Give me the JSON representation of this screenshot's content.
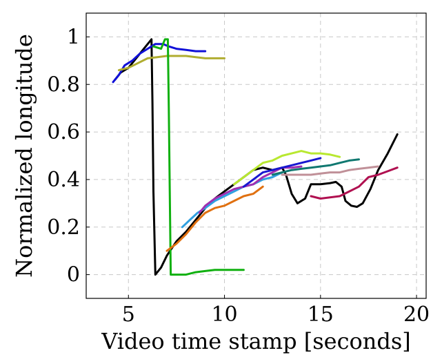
{
  "chart_data": {
    "type": "line",
    "title": "",
    "xlabel": "Video time stamp [seconds]",
    "ylabel": "Normalized longitude",
    "xlim": [
      2.8,
      20.5
    ],
    "ylim": [
      -0.1,
      1.1
    ],
    "xticks": [
      5,
      10,
      15,
      20
    ],
    "yticks": [
      0,
      0.2,
      0.4,
      0.6,
      0.8,
      1
    ],
    "xtick_labels": [
      "5",
      "10",
      "15",
      "20"
    ],
    "ytick_labels": [
      "0",
      "0.2",
      "0.4",
      "0.6",
      "0.8",
      "1"
    ],
    "grid": true,
    "legend": "none",
    "series": [
      {
        "color": "#000000",
        "points": [
          [
            4.3,
            0.82
          ],
          [
            4.6,
            0.85
          ],
          [
            5.0,
            0.87
          ],
          [
            5.4,
            0.91
          ],
          [
            5.8,
            0.95
          ],
          [
            6.2,
            0.99
          ],
          [
            6.25,
            0.72
          ],
          [
            6.3,
            0.35
          ],
          [
            6.4,
            0.0
          ],
          [
            6.7,
            0.03
          ],
          [
            7.0,
            0.08
          ],
          [
            7.5,
            0.14
          ],
          [
            8.0,
            0.18
          ],
          [
            8.5,
            0.23
          ],
          [
            9.0,
            0.28
          ],
          [
            9.5,
            0.32
          ],
          [
            10.0,
            0.35
          ],
          [
            10.5,
            0.38
          ],
          [
            11.0,
            0.41
          ],
          [
            11.5,
            0.44
          ],
          [
            12.0,
            0.45
          ],
          [
            12.5,
            0.44
          ],
          [
            13.0,
            0.45
          ],
          [
            13.2,
            0.42
          ],
          [
            13.5,
            0.34
          ],
          [
            13.8,
            0.3
          ],
          [
            14.2,
            0.32
          ],
          [
            14.5,
            0.38
          ],
          [
            15.0,
            0.38
          ],
          [
            15.5,
            0.385
          ],
          [
            15.8,
            0.39
          ],
          [
            16.1,
            0.37
          ],
          [
            16.3,
            0.31
          ],
          [
            16.6,
            0.29
          ],
          [
            16.9,
            0.285
          ],
          [
            17.2,
            0.3
          ],
          [
            17.6,
            0.36
          ],
          [
            18.0,
            0.44
          ],
          [
            18.5,
            0.51
          ],
          [
            19.0,
            0.59
          ]
        ]
      },
      {
        "color": "#1010d8",
        "points": [
          [
            4.2,
            0.81
          ],
          [
            4.5,
            0.84
          ],
          [
            4.8,
            0.88
          ],
          [
            5.2,
            0.9
          ],
          [
            5.6,
            0.93
          ],
          [
            6.0,
            0.95
          ],
          [
            6.4,
            0.97
          ],
          [
            6.8,
            0.97
          ],
          [
            7.1,
            0.96
          ],
          [
            7.5,
            0.95
          ],
          [
            8.0,
            0.945
          ],
          [
            8.5,
            0.94
          ],
          [
            9.0,
            0.94
          ]
        ]
      },
      {
        "color": "#b0ad30",
        "points": [
          [
            4.5,
            0.86
          ],
          [
            5.0,
            0.87
          ],
          [
            5.5,
            0.89
          ],
          [
            6.0,
            0.91
          ],
          [
            6.5,
            0.915
          ],
          [
            7.0,
            0.92
          ],
          [
            7.5,
            0.92
          ],
          [
            8.0,
            0.92
          ],
          [
            8.5,
            0.915
          ],
          [
            9.0,
            0.91
          ],
          [
            9.5,
            0.91
          ],
          [
            10.0,
            0.91
          ]
        ]
      },
      {
        "color": "#10b010",
        "points": [
          [
            6.3,
            0.96
          ],
          [
            6.7,
            0.95
          ],
          [
            6.9,
            0.99
          ],
          [
            7.05,
            0.99
          ],
          [
            7.1,
            0.7
          ],
          [
            7.15,
            0.35
          ],
          [
            7.2,
            0.0
          ],
          [
            7.5,
            0.0
          ],
          [
            8.0,
            0.0
          ],
          [
            8.5,
            0.01
          ],
          [
            9.0,
            0.015
          ],
          [
            9.5,
            0.02
          ],
          [
            10.0,
            0.02
          ],
          [
            10.5,
            0.02
          ],
          [
            11.0,
            0.02
          ]
        ]
      },
      {
        "color": "#e07010",
        "points": [
          [
            7.0,
            0.1
          ],
          [
            7.5,
            0.13
          ],
          [
            8.0,
            0.17
          ],
          [
            8.5,
            0.22
          ],
          [
            9.0,
            0.26
          ],
          [
            9.5,
            0.28
          ],
          [
            10.0,
            0.29
          ],
          [
            10.5,
            0.31
          ],
          [
            11.0,
            0.33
          ],
          [
            11.5,
            0.34
          ],
          [
            12.0,
            0.37
          ]
        ]
      },
      {
        "color": "#30a0e0",
        "points": [
          [
            7.8,
            0.2
          ],
          [
            8.2,
            0.23
          ],
          [
            8.6,
            0.26
          ],
          [
            9.0,
            0.28
          ],
          [
            9.5,
            0.31
          ],
          [
            10.0,
            0.33
          ],
          [
            10.5,
            0.35
          ],
          [
            11.0,
            0.37
          ],
          [
            11.5,
            0.38
          ],
          [
            12.0,
            0.4
          ],
          [
            12.5,
            0.41
          ],
          [
            13.0,
            0.43
          ]
        ]
      },
      {
        "color": "#a030b0",
        "points": [
          [
            8.7,
            0.26
          ],
          [
            9.0,
            0.29
          ],
          [
            9.5,
            0.32
          ],
          [
            10.0,
            0.34
          ],
          [
            10.5,
            0.36
          ],
          [
            11.0,
            0.37
          ],
          [
            11.5,
            0.38
          ],
          [
            12.0,
            0.41
          ],
          [
            12.5,
            0.43
          ],
          [
            13.0,
            0.45
          ],
          [
            13.5,
            0.45
          ],
          [
            14.0,
            0.455
          ]
        ]
      },
      {
        "color": "#b8e830",
        "points": [
          [
            10.5,
            0.38
          ],
          [
            11.0,
            0.41
          ],
          [
            11.5,
            0.44
          ],
          [
            12.0,
            0.47
          ],
          [
            12.5,
            0.48
          ],
          [
            13.0,
            0.5
          ],
          [
            13.5,
            0.51
          ],
          [
            14.0,
            0.52
          ],
          [
            14.5,
            0.51
          ],
          [
            15.0,
            0.51
          ],
          [
            15.5,
            0.505
          ],
          [
            16.0,
            0.495
          ]
        ]
      },
      {
        "color": "#1818d0",
        "points": [
          [
            11.0,
            0.37
          ],
          [
            11.5,
            0.4
          ],
          [
            12.0,
            0.43
          ],
          [
            12.5,
            0.44
          ],
          [
            13.0,
            0.45
          ],
          [
            13.5,
            0.46
          ],
          [
            14.0,
            0.47
          ],
          [
            14.5,
            0.48
          ],
          [
            15.0,
            0.49
          ]
        ]
      },
      {
        "color": "#107870",
        "points": [
          [
            12.5,
            0.42
          ],
          [
            13.0,
            0.43
          ],
          [
            13.5,
            0.44
          ],
          [
            14.0,
            0.445
          ],
          [
            14.5,
            0.45
          ],
          [
            15.0,
            0.455
          ],
          [
            15.5,
            0.46
          ],
          [
            16.0,
            0.47
          ],
          [
            16.5,
            0.48
          ],
          [
            17.0,
            0.485
          ]
        ]
      },
      {
        "color": "#c09098",
        "points": [
          [
            13.0,
            0.42
          ],
          [
            13.5,
            0.42
          ],
          [
            14.0,
            0.42
          ],
          [
            14.5,
            0.42
          ],
          [
            15.0,
            0.425
          ],
          [
            15.5,
            0.43
          ],
          [
            16.0,
            0.43
          ],
          [
            16.5,
            0.44
          ],
          [
            17.0,
            0.445
          ],
          [
            17.5,
            0.45
          ],
          [
            18.0,
            0.455
          ]
        ]
      },
      {
        "color": "#b01050",
        "points": [
          [
            14.5,
            0.33
          ],
          [
            15.0,
            0.32
          ],
          [
            15.5,
            0.325
          ],
          [
            16.0,
            0.33
          ],
          [
            16.5,
            0.35
          ],
          [
            17.0,
            0.37
          ],
          [
            17.5,
            0.41
          ],
          [
            18.0,
            0.42
          ],
          [
            18.5,
            0.435
          ],
          [
            19.0,
            0.45
          ]
        ]
      }
    ]
  }
}
